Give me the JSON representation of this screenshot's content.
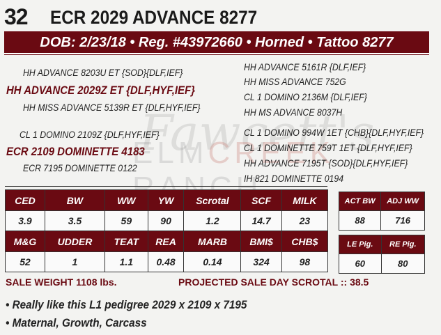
{
  "lot_number": "32",
  "title": "ECR 2029 ADVANCE 8277",
  "banner": "DOB: 2/23/18 • Reg. #43972660 • Horned • Tattoo 8277",
  "watermark_logo": {
    "script": "Fawcett's",
    "name_a": "ELM",
    "name_b": "CREEK",
    "name_c": "RANCH"
  },
  "pedigree": {
    "sire": "HH ADVANCE 2029Z ET {DLF,HYF,IEF}",
    "sire_sire": "HH ADVANCE 8203U ET {SOD}{DLF,IEF}",
    "sire_dam": "HH MISS ADVANCE 5139R ET {DLF,HYF,IEF}",
    "dam": "ECR 2109 DOMINETTE 4183",
    "dam_sire": "CL 1 DOMINO 2109Z {DLF,HYF,IEF}",
    "dam_dam": "ECR 7195 DOMINETTE 0122",
    "right": [
      "HH ADVANCE 5161R {DLF,IEF}",
      "HH MISS ADVANCE 752G",
      "CL 1 DOMINO 2136M {DLF,IEF}",
      "HH MS ADVANCE 8037H",
      "CL 1 DOMINO 994W 1ET {CHB}{DLF,HYF,IEF}",
      "CL 1 DOMINETTE 759T 1ET {DLF,HYF,IEF}",
      "HH ADVANCE 7195T {SOD}{DLF,HYF,IEF}",
      "IH 821 DOMINETTE 0194"
    ]
  },
  "epd": {
    "headers1": [
      "CED",
      "BW",
      "WW",
      "YW",
      "Scrotal",
      "SCF",
      "MILK"
    ],
    "values1": [
      "3.9",
      "3.5",
      "59",
      "90",
      "1.2",
      "14.7",
      "23"
    ],
    "headers2": [
      "M&G",
      "UDDER",
      "TEAT",
      "REA",
      "MARB",
      "BMI$",
      "CHB$"
    ],
    "values2": [
      "52",
      "1",
      "1.1",
      "0.48",
      "0.14",
      "324",
      "98"
    ]
  },
  "side1": {
    "headers": [
      "ACT BW",
      "ADJ WW"
    ],
    "values": [
      "88",
      "716"
    ]
  },
  "side2": {
    "headers": [
      "LE Pig.",
      "RE Pig."
    ],
    "values": [
      "60",
      "80"
    ]
  },
  "sale_weight": "SALE WEIGHT 1108 lbs.",
  "projected_scrotal": "PROJECTED SALE DAY SCROTAL :: 38.5",
  "notes": [
    "• Really like this L1 pedigree 2029 x 2109 x 7195",
    "• Maternal, Growth, Carcass"
  ],
  "colors": {
    "brand": "#6a0a12"
  }
}
